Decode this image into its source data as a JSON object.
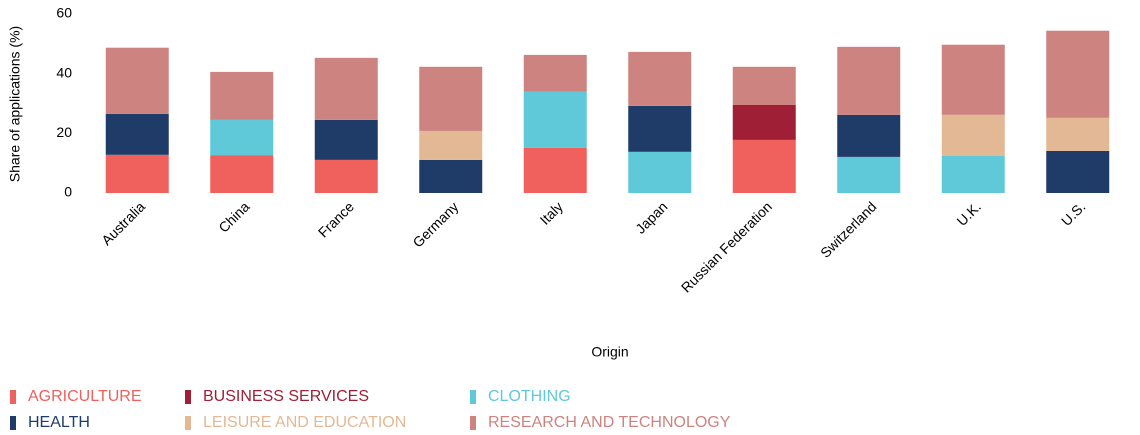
{
  "chart_data": {
    "type": "stacked_bar",
    "xlabel": "Origin",
    "ylabel": "Share of applications (%)",
    "categories": [
      "Australia",
      "China",
      "France",
      "Germany",
      "Italy",
      "Japan",
      "Russian Federation",
      "Switzerland",
      "U.K.",
      "U.S."
    ],
    "series": [
      {
        "name": "AGRICULTURE",
        "color": "#f0605d",
        "values": [
          12.8,
          12.7,
          11.1,
          null,
          15.1,
          null,
          17.8,
          null,
          null,
          null
        ]
      },
      {
        "name": "BUSINESS SERVICES",
        "color": "#9e1f36",
        "values": [
          null,
          null,
          null,
          null,
          null,
          null,
          11.7,
          null,
          null,
          null
        ]
      },
      {
        "name": "CLOTHING",
        "color": "#5fc8d9",
        "values": [
          null,
          11.8,
          null,
          null,
          18.8,
          13.8,
          null,
          12.1,
          12.4,
          null
        ]
      },
      {
        "name": "HEALTH",
        "color": "#1f3c68",
        "values": [
          13.7,
          null,
          13.4,
          11.1,
          null,
          15.4,
          null,
          14.1,
          null,
          14.1
        ]
      },
      {
        "name": "LEISURE AND EDUCATION",
        "color": "#e2b994",
        "values": [
          null,
          null,
          null,
          9.7,
          null,
          null,
          null,
          null,
          13.8,
          11.1
        ]
      },
      {
        "name": "RESEARCH AND TECHNOLOGY",
        "color": "#cd837f",
        "values": [
          22.2,
          16.1,
          20.8,
          21.5,
          12.4,
          18.1,
          12.8,
          22.8,
          23.5,
          29.2
        ]
      }
    ],
    "ylim": [
      0,
      60
    ],
    "yticks": [
      0,
      20,
      40,
      60
    ],
    "grid": false
  }
}
